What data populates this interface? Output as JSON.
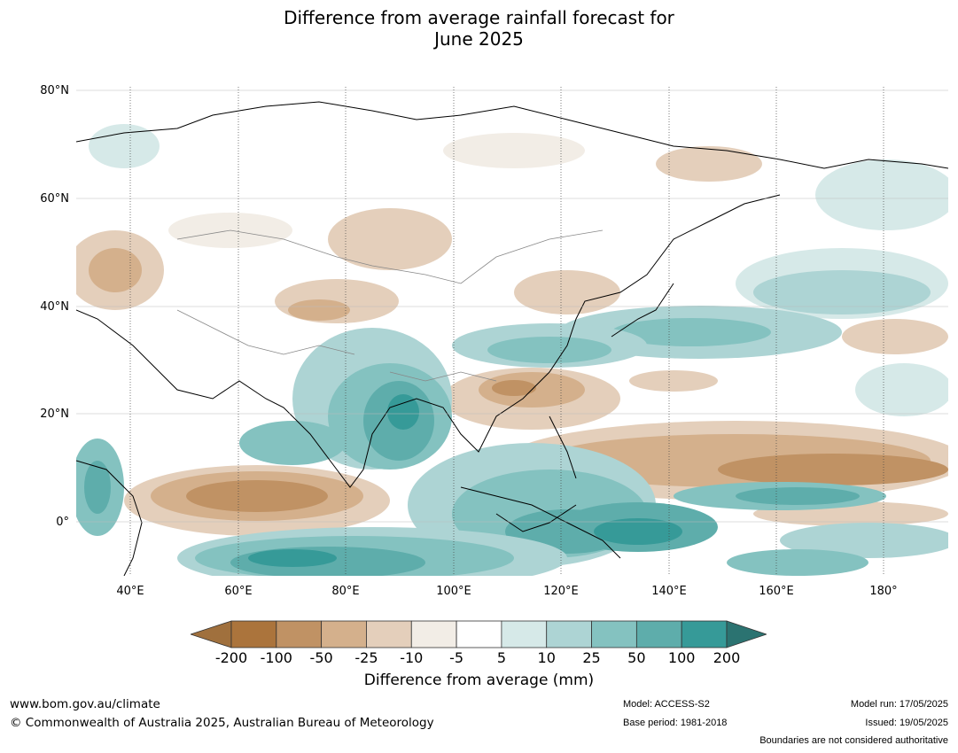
{
  "title": {
    "line1": "Difference from average rainfall forecast for",
    "line2": "June 2025"
  },
  "map": {
    "lat_labels": [
      "80°N",
      "60°N",
      "40°N",
      "20°N",
      "0°"
    ],
    "lon_labels": [
      "40°E",
      "60°E",
      "80°E",
      "100°E",
      "120°E",
      "140°E",
      "160°E",
      "180°"
    ],
    "extent": {
      "lon_min": 30,
      "lon_max": 192,
      "lat_min": -10,
      "lat_max": 80
    }
  },
  "colorbar": {
    "label": "Difference from average (mm)",
    "ticks": [
      "-200",
      "-100",
      "-50",
      "-25",
      "-10",
      "-5",
      "5",
      "10",
      "25",
      "50",
      "100",
      "200"
    ],
    "colors": [
      "#a0703d",
      "#ab743c",
      "#c09264",
      "#d4b08c",
      "#e4cfbb",
      "#f2ede6",
      "#ffffff",
      "#d6e9e8",
      "#add4d4",
      "#84c2c0",
      "#5eadab",
      "#369a98",
      "#2b7371"
    ]
  },
  "footer": {
    "website": "www.bom.gov.au/climate",
    "copyright": "© Commonwealth of Australia 2025, Australian Bureau of Meteorology",
    "model": "Model: ACCESS-S2",
    "base_period": "Base period: 1981-2018",
    "model_run": "Model run: 17/05/2025",
    "issued": "Issued: 19/05/2025",
    "disclaimer": "Boundaries are not considered authoritative"
  }
}
